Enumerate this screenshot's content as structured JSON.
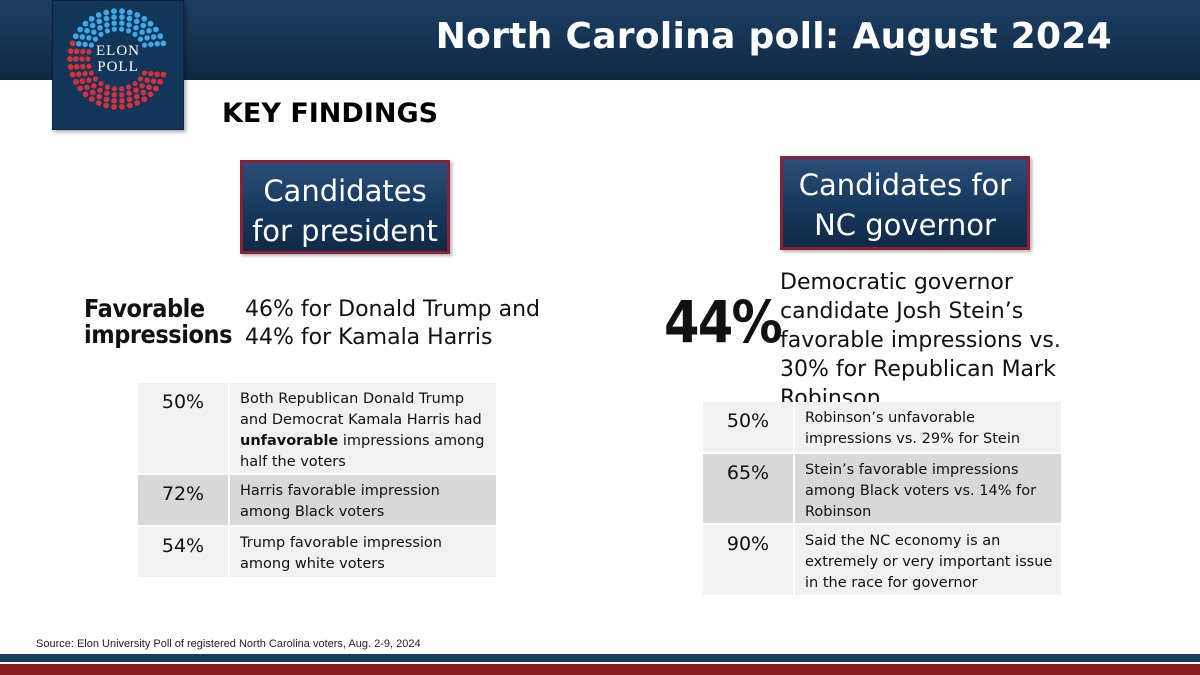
{
  "header": {
    "title": "North Carolina poll: August 2024",
    "logo_line1": "ELON",
    "logo_line2": "POLL"
  },
  "section_title": "KEY FINDINGS",
  "president": {
    "box_line1": "Candidates",
    "box_line2": "for president",
    "favorable_label_line1": "Favorable",
    "favorable_label_line2": "impressions",
    "favorable_text_line1": "46% for Donald Trump and",
    "favorable_text_line2": "44% for Kamala Harris",
    "rows": [
      {
        "pct": "50%",
        "pre": "Both Republican Donald Trump and Democrat Kamala Harris had ",
        "bold": "unfavorable",
        "post": " impressions among half the voters"
      },
      {
        "pct": "72%",
        "pre": "Harris favorable impression among Black voters",
        "bold": "",
        "post": ""
      },
      {
        "pct": "54%",
        "pre": "Trump favorable impression among white voters",
        "bold": "",
        "post": ""
      }
    ]
  },
  "governor": {
    "box_line1": "Candidates for",
    "box_line2": "NC governor",
    "big_pct": "44%",
    "headline": "Democratic governor candidate Josh Stein’s favorable impressions vs. 30% for Republican Mark Robinson",
    "rows": [
      {
        "pct": "50%",
        "text": "Robinson’s unfavorable impressions vs. 29% for Stein"
      },
      {
        "pct": "65%",
        "text": "Stein’s favorable impressions among Black voters vs. 14% for Robinson"
      },
      {
        "pct": "90%",
        "text": "Said the NC economy is an extremely or very important issue in the race for governor"
      }
    ]
  },
  "source": "Source: Elon University Poll of registered North Carolina voters, Aug. 2-9, 2024",
  "colors": {
    "navy": "#163352",
    "maroon": "#8a1f3a",
    "logo_blue_dots": "#3fa9e6",
    "logo_red_dots": "#d9303a"
  }
}
